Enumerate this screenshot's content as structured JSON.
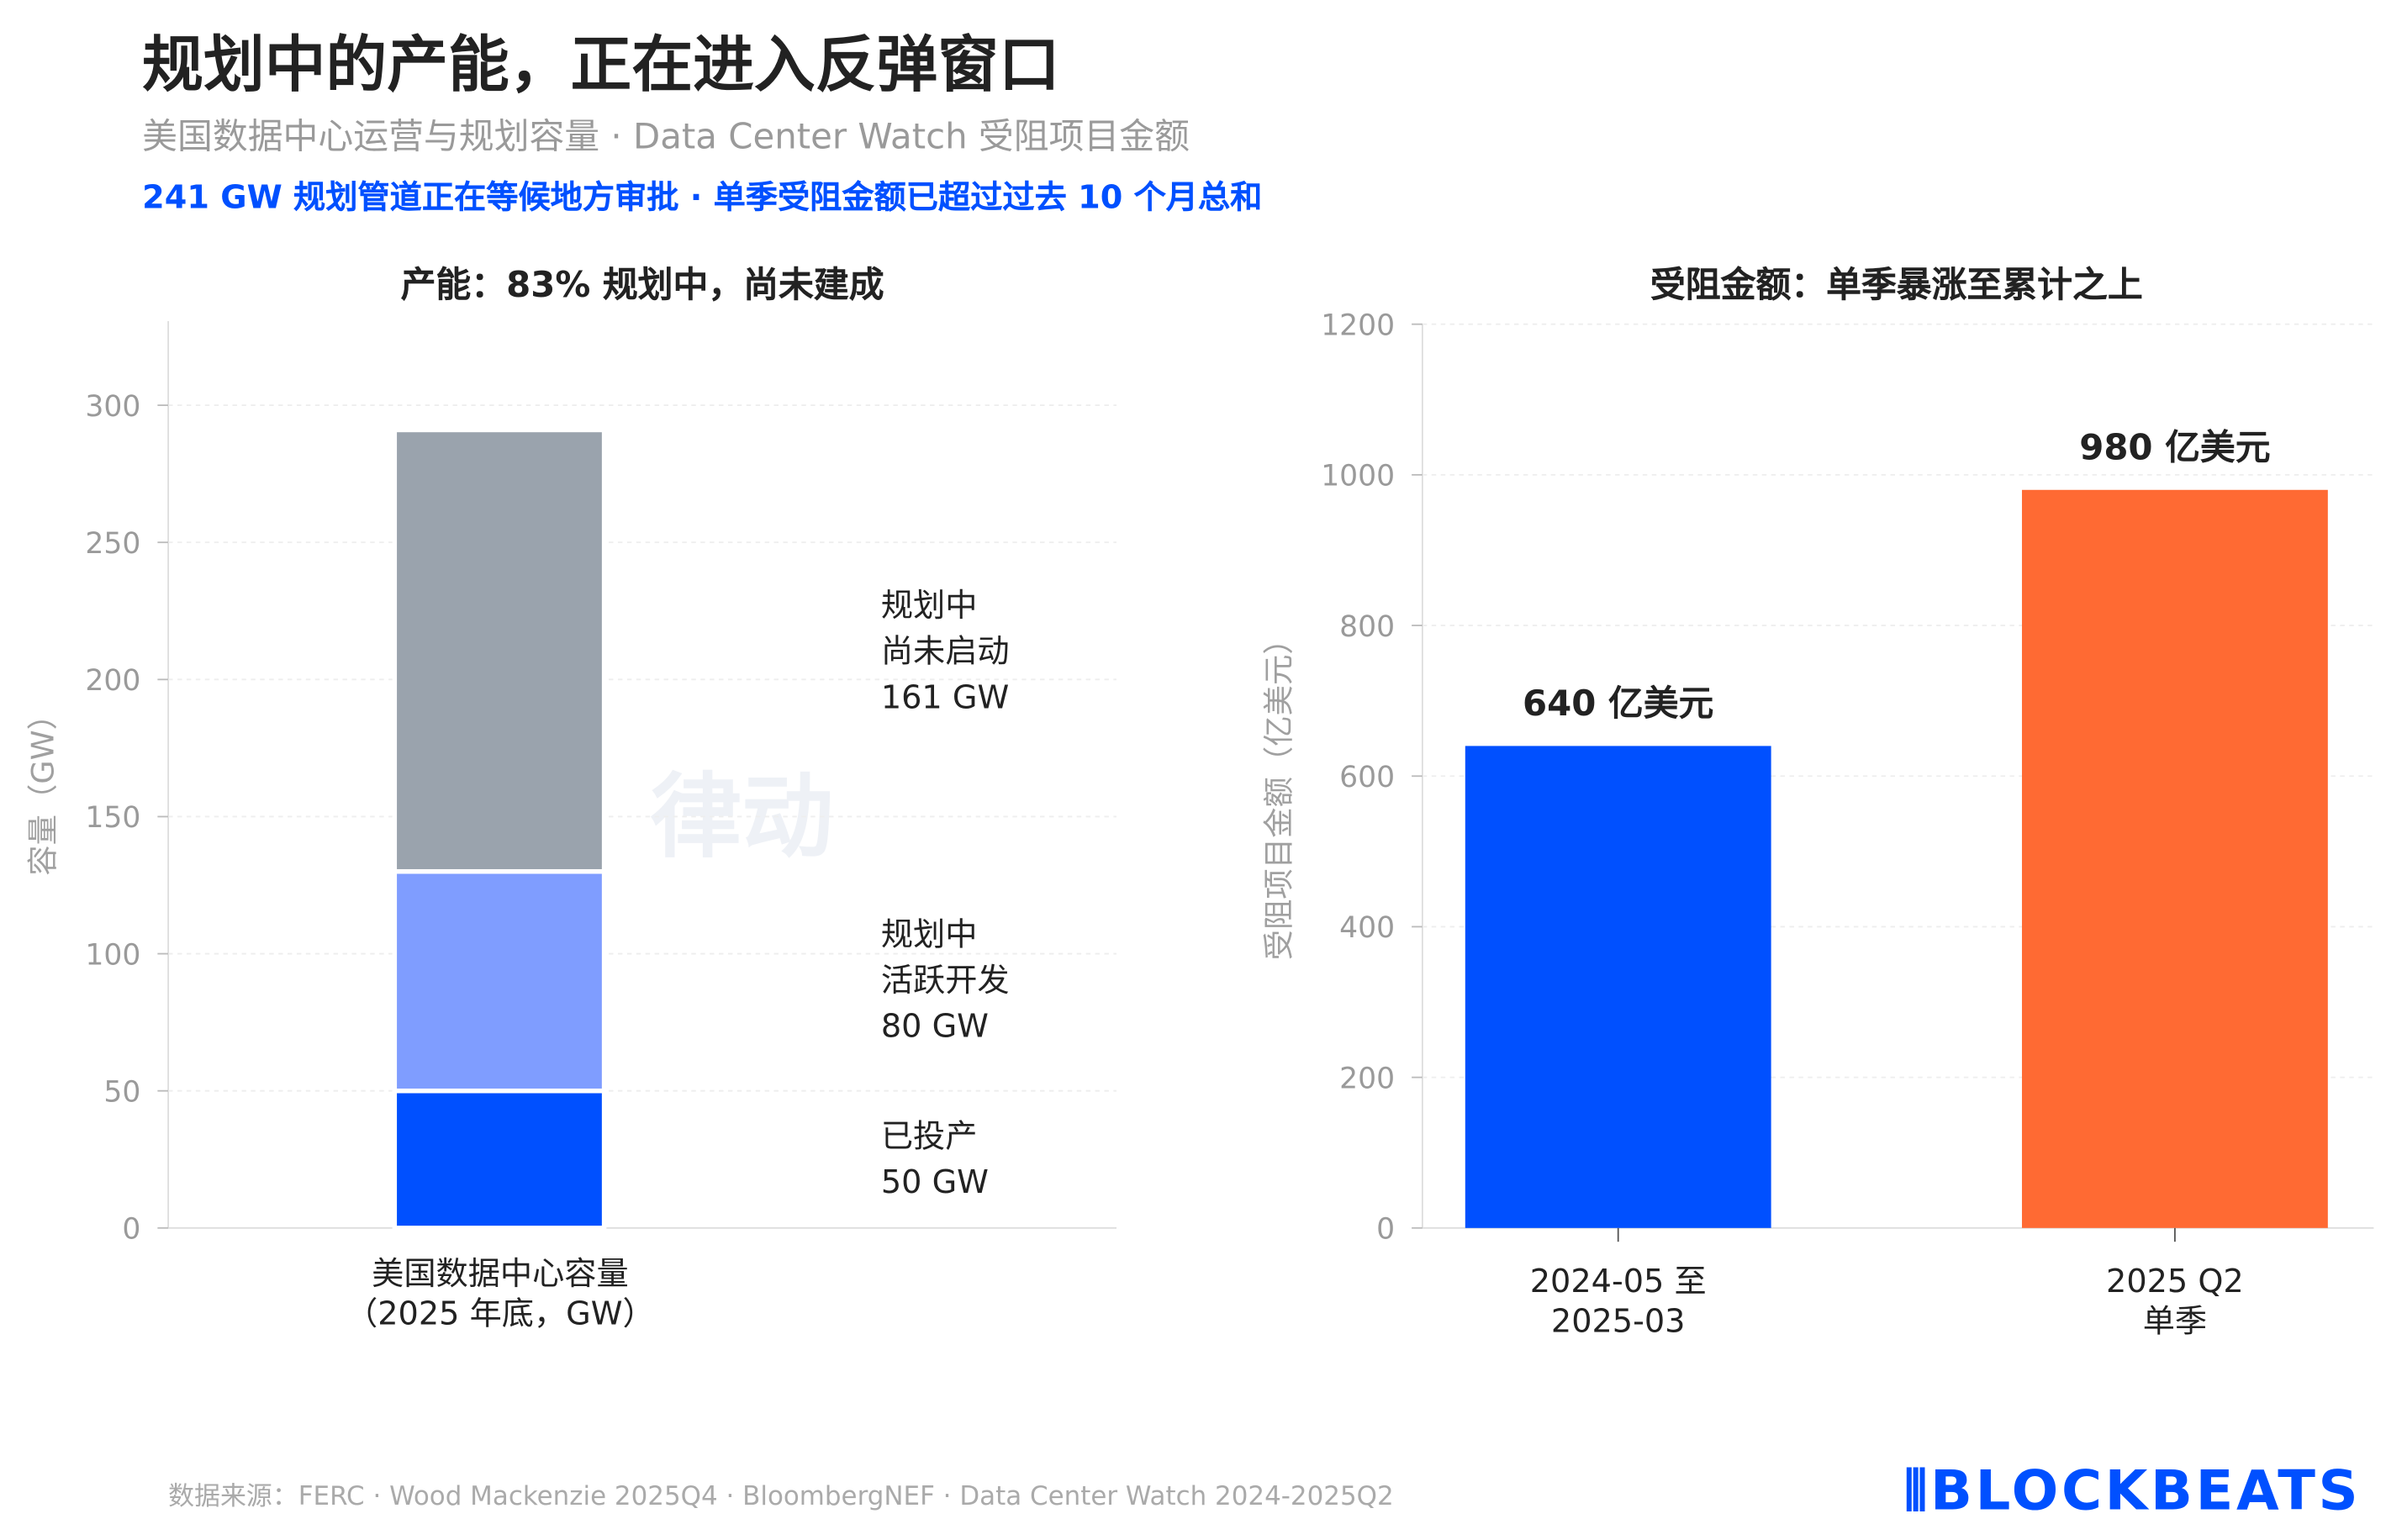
{
  "header": {
    "title": "规划中的产能，正在进入反弹窗口",
    "subtitle": "美国数据中心运营与规划容量 · Data Center Watch 受阻项目金额",
    "highlight": "241 GW 规划管道正在等候地方审批 · 单季受阻金额已超过过去 10 个月总和"
  },
  "chart_data": [
    {
      "type": "bar",
      "stacked": true,
      "title": "产能：83% 规划中，尚未建成",
      "ylabel": "容量（GW）",
      "ylim": [
        0,
        330
      ],
      "yticks": [
        0,
        50,
        100,
        150,
        200,
        250,
        300
      ],
      "grid": true,
      "categories": [
        "美国数据中心容量\n（2025 年底，GW）"
      ],
      "category_lines": [
        "美国数据中心容量",
        "（2025 年底，GW）"
      ],
      "series": [
        {
          "name": "已投产",
          "values": [
            50
          ],
          "color": "#0050ff",
          "label_lines": [
            "已投产",
            "50 GW"
          ]
        },
        {
          "name": "规划中 活跃开发",
          "values": [
            80
          ],
          "color": "#7f9dff",
          "label_lines": [
            "规划中",
            "活跃开发",
            "80 GW"
          ]
        },
        {
          "name": "规划中 尚未启动",
          "values": [
            161
          ],
          "color": "#9aa3ad",
          "label_lines": [
            "规划中",
            "尚未启动",
            "161 GW"
          ]
        }
      ]
    },
    {
      "type": "bar",
      "title": "受阻金额：单季暴涨至累计之上",
      "ylabel": "受阻项目金额（亿美元）",
      "ylim": [
        0,
        1200
      ],
      "yticks": [
        0,
        200,
        400,
        600,
        800,
        1000,
        1200
      ],
      "grid": true,
      "categories": [
        "2024-05 至\n2025-03",
        "2025 Q2\n单季"
      ],
      "category_lines": [
        [
          "2024-05 至",
          "2025-03"
        ],
        [
          "2025 Q2",
          "单季"
        ]
      ],
      "values": [
        640,
        980
      ],
      "data_labels": [
        "640 亿美元",
        "980 亿美元"
      ],
      "colors": [
        "#0050ff",
        "#ff6a33"
      ]
    }
  ],
  "footer": {
    "source": "数据来源：FERC · Wood Mackenzie 2025Q4 · BloombergNEF · Data Center Watch 2024-2025Q2"
  },
  "logo": {
    "text": "BLOCKBEATS",
    "watermark": "律动 BLOCKBEATS"
  },
  "colors": {
    "accent": "#0050ff",
    "orange": "#ff6a33",
    "gray": "#9aa3ad",
    "light_blue": "#7f9dff"
  }
}
